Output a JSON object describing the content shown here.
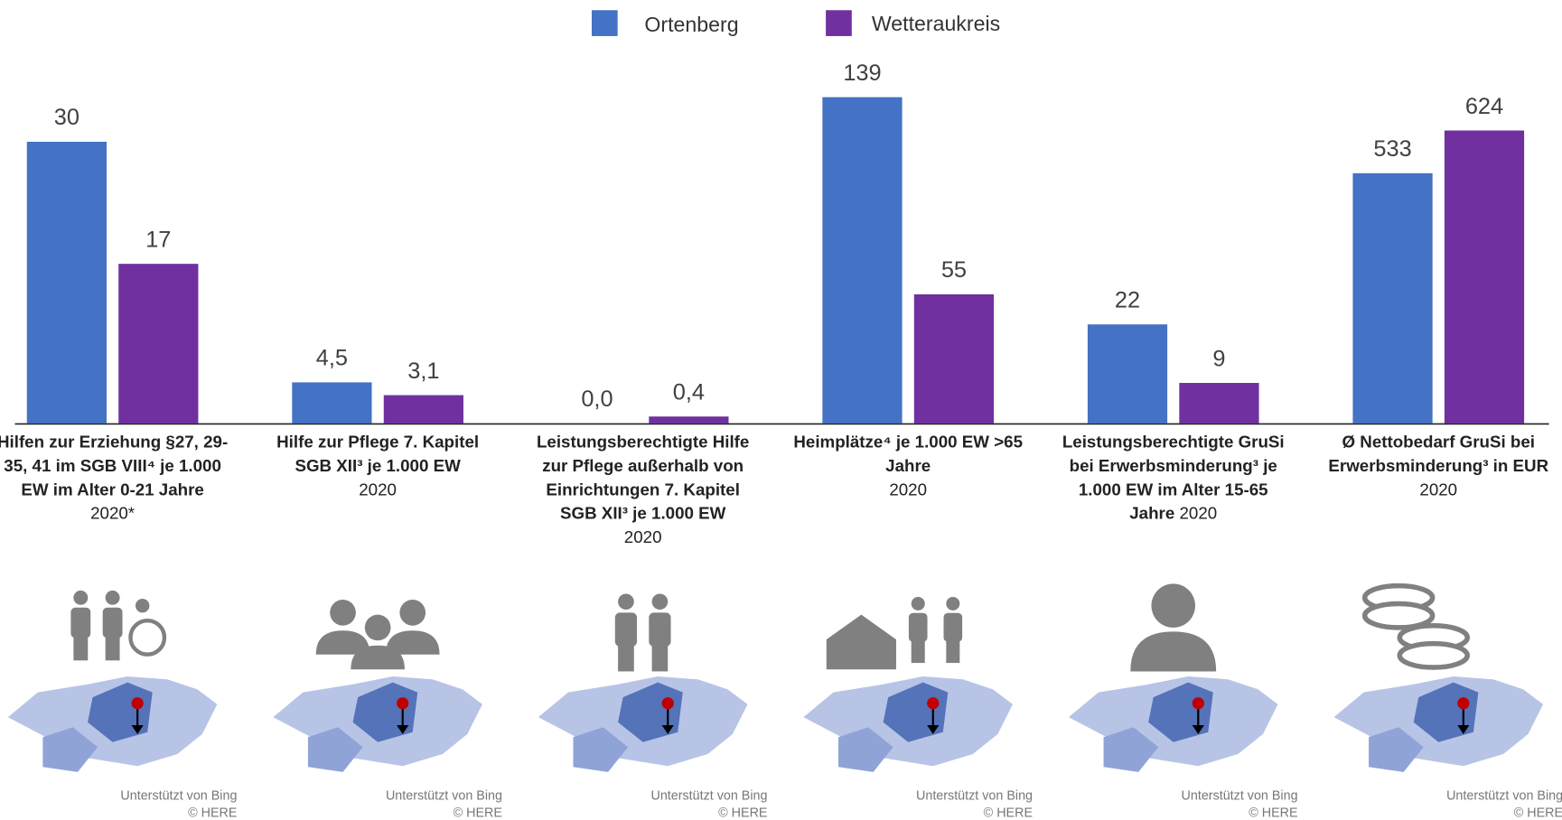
{
  "chart_data": {
    "type": "bar",
    "categories": [
      "Hilfen zur Erziehung §27, 29-35, 41 im SGB VIII⁴  je 1.000 EW im Alter 0-21 Jahre",
      "Hilfe zur Pflege 7. Kapitel SGB XII³ je 1.000 EW",
      "Leistungsberechtigte Hilfe zur Pflege außerhalb von Einrichtungen 7. Kapitel SGB XII³ je 1.000 EW",
      "Heimplätze⁴ je 1.000 EW >65 Jahre",
      "Leistungsberechtigte GruSi bei Erwerbsminderung³ je 1.000 EW im Alter 15-65 Jahre",
      "Ø Nettobedarf GruSi bei Erwerbsminderung³ in EUR"
    ],
    "years": [
      "2020*",
      "2020",
      "2020",
      "2020",
      "2020",
      "2020"
    ],
    "series": [
      {
        "name": "Ortenberg",
        "color": "#4472c4",
        "values": [
          30,
          4.5,
          0,
          139,
          22,
          533
        ],
        "value_labels": [
          "30",
          "4,5",
          "0,0",
          "139",
          "22",
          "533"
        ]
      },
      {
        "name": "Wetteraukreis",
        "color": "#7030a0",
        "values": [
          17,
          3.1,
          0.4,
          55,
          9,
          624
        ],
        "value_labels": [
          "17",
          "3,1",
          "0,4",
          "55",
          "9",
          "624"
        ]
      }
    ],
    "ylim": [
      [
        0,
        35
      ],
      [
        0,
        36
      ],
      [
        0,
        19
      ],
      [
        0,
        140
      ],
      [
        0,
        73
      ],
      [
        0,
        700
      ]
    ],
    "map_credit": "Unterstützt von Bing",
    "map_copyright": "© HERE"
  }
}
